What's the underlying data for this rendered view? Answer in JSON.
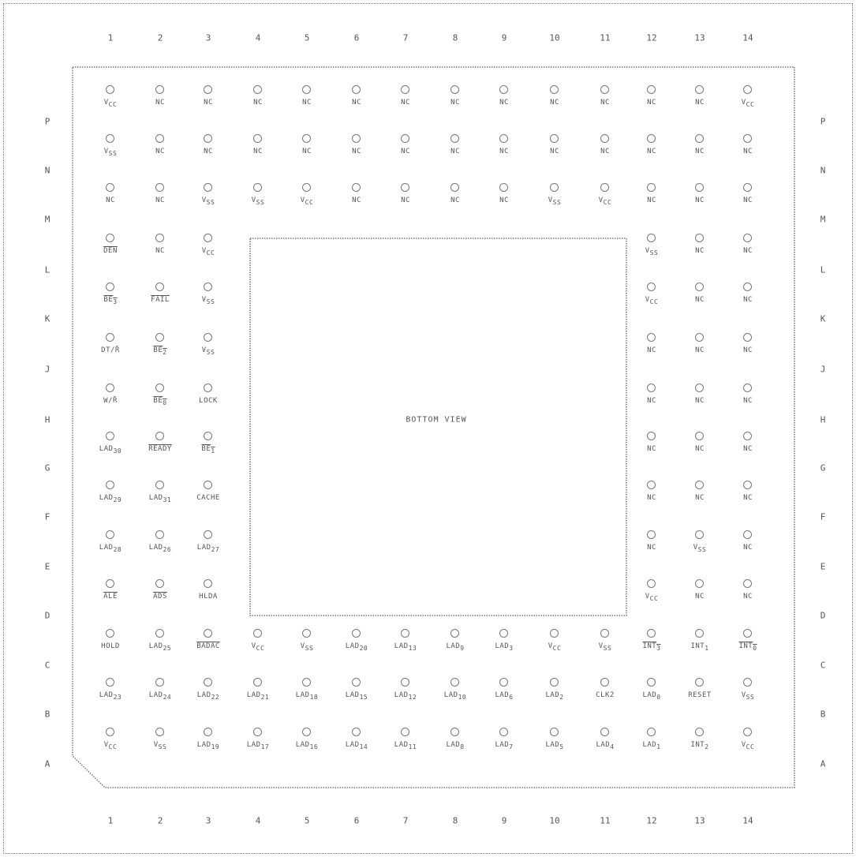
{
  "view_label": "BOTTOM VIEW",
  "columns": [
    "1",
    "2",
    "3",
    "4",
    "5",
    "6",
    "7",
    "8",
    "9",
    "10",
    "11",
    "12",
    "13",
    "14"
  ],
  "rows": [
    "P",
    "N",
    "M",
    "L",
    "K",
    "J",
    "H",
    "G",
    "F",
    "E",
    "D",
    "C",
    "B",
    "A"
  ],
  "pins": [
    {
      "row": "P",
      "col": 1,
      "label": "V",
      "sub": "CC"
    },
    {
      "row": "P",
      "col": 2,
      "label": "NC"
    },
    {
      "row": "P",
      "col": 3,
      "label": "NC"
    },
    {
      "row": "P",
      "col": 4,
      "label": "NC"
    },
    {
      "row": "P",
      "col": 5,
      "label": "NC"
    },
    {
      "row": "P",
      "col": 6,
      "label": "NC"
    },
    {
      "row": "P",
      "col": 7,
      "label": "NC"
    },
    {
      "row": "P",
      "col": 8,
      "label": "NC"
    },
    {
      "row": "P",
      "col": 9,
      "label": "NC"
    },
    {
      "row": "P",
      "col": 10,
      "label": "NC"
    },
    {
      "row": "P",
      "col": 11,
      "label": "NC"
    },
    {
      "row": "P",
      "col": 12,
      "label": "NC"
    },
    {
      "row": "P",
      "col": 13,
      "label": "NC"
    },
    {
      "row": "P",
      "col": 14,
      "label": "V",
      "sub": "CC"
    },
    {
      "row": "N",
      "col": 1,
      "label": "V",
      "sub": "SS"
    },
    {
      "row": "N",
      "col": 2,
      "label": "NC"
    },
    {
      "row": "N",
      "col": 3,
      "label": "NC"
    },
    {
      "row": "N",
      "col": 4,
      "label": "NC"
    },
    {
      "row": "N",
      "col": 5,
      "label": "NC"
    },
    {
      "row": "N",
      "col": 6,
      "label": "NC"
    },
    {
      "row": "N",
      "col": 7,
      "label": "NC"
    },
    {
      "row": "N",
      "col": 8,
      "label": "NC"
    },
    {
      "row": "N",
      "col": 9,
      "label": "NC"
    },
    {
      "row": "N",
      "col": 10,
      "label": "NC"
    },
    {
      "row": "N",
      "col": 11,
      "label": "NC"
    },
    {
      "row": "N",
      "col": 12,
      "label": "NC"
    },
    {
      "row": "N",
      "col": 13,
      "label": "NC"
    },
    {
      "row": "N",
      "col": 14,
      "label": "NC"
    },
    {
      "row": "M",
      "col": 1,
      "label": "NC"
    },
    {
      "row": "M",
      "col": 2,
      "label": "NC"
    },
    {
      "row": "M",
      "col": 3,
      "label": "V",
      "sub": "SS"
    },
    {
      "row": "M",
      "col": 4,
      "label": "V",
      "sub": "SS"
    },
    {
      "row": "M",
      "col": 5,
      "label": "V",
      "sub": "CC"
    },
    {
      "row": "M",
      "col": 6,
      "label": "NC"
    },
    {
      "row": "M",
      "col": 7,
      "label": "NC"
    },
    {
      "row": "M",
      "col": 8,
      "label": "NC"
    },
    {
      "row": "M",
      "col": 9,
      "label": "NC"
    },
    {
      "row": "M",
      "col": 10,
      "label": "V",
      "sub": "SS"
    },
    {
      "row": "M",
      "col": 11,
      "label": "V",
      "sub": "CC"
    },
    {
      "row": "M",
      "col": 12,
      "label": "NC"
    },
    {
      "row": "M",
      "col": 13,
      "label": "NC"
    },
    {
      "row": "M",
      "col": 14,
      "label": "NC"
    },
    {
      "row": "L",
      "col": 1,
      "label": "DEN",
      "overline": true
    },
    {
      "row": "L",
      "col": 2,
      "label": "NC"
    },
    {
      "row": "L",
      "col": 3,
      "label": "V",
      "sub": "CC"
    },
    {
      "row": "L",
      "col": 12,
      "label": "V",
      "sub": "SS"
    },
    {
      "row": "L",
      "col": 13,
      "label": "NC"
    },
    {
      "row": "L",
      "col": 14,
      "label": "NC"
    },
    {
      "row": "K",
      "col": 1,
      "label": "BE",
      "sub": "3",
      "overline": true
    },
    {
      "row": "K",
      "col": 2,
      "label": "FAIL",
      "overline": true
    },
    {
      "row": "K",
      "col": 3,
      "label": "V",
      "sub": "SS"
    },
    {
      "row": "K",
      "col": 12,
      "label": "V",
      "sub": "CC"
    },
    {
      "row": "K",
      "col": 13,
      "label": "NC"
    },
    {
      "row": "K",
      "col": 14,
      "label": "NC"
    },
    {
      "row": "J",
      "col": 1,
      "label": "DT/R̄"
    },
    {
      "row": "J",
      "col": 2,
      "label": "BE",
      "sub": "2",
      "overline": true
    },
    {
      "row": "J",
      "col": 3,
      "label": "V",
      "sub": "SS"
    },
    {
      "row": "J",
      "col": 12,
      "label": "NC"
    },
    {
      "row": "J",
      "col": 13,
      "label": "NC"
    },
    {
      "row": "J",
      "col": 14,
      "label": "NC"
    },
    {
      "row": "H",
      "col": 1,
      "label": "W/R̄"
    },
    {
      "row": "H",
      "col": 2,
      "label": "BE",
      "sub": "0",
      "overline": true
    },
    {
      "row": "H",
      "col": 3,
      "label": "LOCK"
    },
    {
      "row": "H",
      "col": 12,
      "label": "NC"
    },
    {
      "row": "H",
      "col": 13,
      "label": "NC"
    },
    {
      "row": "H",
      "col": 14,
      "label": "NC"
    },
    {
      "row": "G",
      "col": 1,
      "label": "LAD",
      "sub": "30"
    },
    {
      "row": "G",
      "col": 2,
      "label": "READY",
      "overline": true
    },
    {
      "row": "G",
      "col": 3,
      "label": "BE",
      "sub": "1",
      "overline": true
    },
    {
      "row": "G",
      "col": 12,
      "label": "NC"
    },
    {
      "row": "G",
      "col": 13,
      "label": "NC"
    },
    {
      "row": "G",
      "col": 14,
      "label": "NC"
    },
    {
      "row": "F",
      "col": 1,
      "label": "LAD",
      "sub": "29"
    },
    {
      "row": "F",
      "col": 2,
      "label": "LAD",
      "sub": "31"
    },
    {
      "row": "F",
      "col": 3,
      "label": "CACHE"
    },
    {
      "row": "F",
      "col": 12,
      "label": "NC"
    },
    {
      "row": "F",
      "col": 13,
      "label": "NC"
    },
    {
      "row": "F",
      "col": 14,
      "label": "NC"
    },
    {
      "row": "E",
      "col": 1,
      "label": "LAD",
      "sub": "28"
    },
    {
      "row": "E",
      "col": 2,
      "label": "LAD",
      "sub": "26"
    },
    {
      "row": "E",
      "col": 3,
      "label": "LAD",
      "sub": "27"
    },
    {
      "row": "E",
      "col": 12,
      "label": "NC"
    },
    {
      "row": "E",
      "col": 13,
      "label": "V",
      "sub": "SS"
    },
    {
      "row": "E",
      "col": 14,
      "label": "NC"
    },
    {
      "row": "D",
      "col": 1,
      "label": "ALE",
      "overline": true
    },
    {
      "row": "D",
      "col": 2,
      "label": "ADS",
      "overline": true
    },
    {
      "row": "D",
      "col": 3,
      "label": "HLDA"
    },
    {
      "row": "D",
      "col": 12,
      "label": "V",
      "sub": "CC"
    },
    {
      "row": "D",
      "col": 13,
      "label": "NC"
    },
    {
      "row": "D",
      "col": 14,
      "label": "NC"
    },
    {
      "row": "C",
      "col": 1,
      "label": "HOLD"
    },
    {
      "row": "C",
      "col": 2,
      "label": "LAD",
      "sub": "25"
    },
    {
      "row": "C",
      "col": 3,
      "label": "BADAC",
      "overline": true
    },
    {
      "row": "C",
      "col": 4,
      "label": "V",
      "sub": "CC"
    },
    {
      "row": "C",
      "col": 5,
      "label": "V",
      "sub": "SS"
    },
    {
      "row": "C",
      "col": 6,
      "label": "LAD",
      "sub": "20"
    },
    {
      "row": "C",
      "col": 7,
      "label": "LAD",
      "sub": "13"
    },
    {
      "row": "C",
      "col": 8,
      "label": "LAD",
      "sub": "9"
    },
    {
      "row": "C",
      "col": 9,
      "label": "LAD",
      "sub": "3"
    },
    {
      "row": "C",
      "col": 10,
      "label": "V",
      "sub": "CC"
    },
    {
      "row": "C",
      "col": 11,
      "label": "V",
      "sub": "SS"
    },
    {
      "row": "C",
      "col": 12,
      "label": "INT",
      "sub": "3",
      "overline": true
    },
    {
      "row": "C",
      "col": 13,
      "label": "INT",
      "sub": "1"
    },
    {
      "row": "C",
      "col": 14,
      "label": "INT",
      "sub": "0",
      "overline": true
    },
    {
      "row": "B",
      "col": 1,
      "label": "LAD",
      "sub": "23"
    },
    {
      "row": "B",
      "col": 2,
      "label": "LAD",
      "sub": "24"
    },
    {
      "row": "B",
      "col": 3,
      "label": "LAD",
      "sub": "22"
    },
    {
      "row": "B",
      "col": 4,
      "label": "LAD",
      "sub": "21"
    },
    {
      "row": "B",
      "col": 5,
      "label": "LAD",
      "sub": "18"
    },
    {
      "row": "B",
      "col": 6,
      "label": "LAD",
      "sub": "15"
    },
    {
      "row": "B",
      "col": 7,
      "label": "LAD",
      "sub": "12"
    },
    {
      "row": "B",
      "col": 8,
      "label": "LAD",
      "sub": "10"
    },
    {
      "row": "B",
      "col": 9,
      "label": "LAD",
      "sub": "6"
    },
    {
      "row": "B",
      "col": 10,
      "label": "LAD",
      "sub": "2"
    },
    {
      "row": "B",
      "col": 11,
      "label": "CLK2"
    },
    {
      "row": "B",
      "col": 12,
      "label": "LAD",
      "sub": "0"
    },
    {
      "row": "B",
      "col": 13,
      "label": "RESET"
    },
    {
      "row": "B",
      "col": 14,
      "label": "V",
      "sub": "SS"
    },
    {
      "row": "A",
      "col": 1,
      "label": "V",
      "sub": "CC"
    },
    {
      "row": "A",
      "col": 2,
      "label": "V",
      "sub": "SS"
    },
    {
      "row": "A",
      "col": 3,
      "label": "LAD",
      "sub": "19"
    },
    {
      "row": "A",
      "col": 4,
      "label": "LAD",
      "sub": "17"
    },
    {
      "row": "A",
      "col": 5,
      "label": "LAD",
      "sub": "16"
    },
    {
      "row": "A",
      "col": 6,
      "label": "LAD",
      "sub": "14"
    },
    {
      "row": "A",
      "col": 7,
      "label": "LAD",
      "sub": "11"
    },
    {
      "row": "A",
      "col": 8,
      "label": "LAD",
      "sub": "8"
    },
    {
      "row": "A",
      "col": 9,
      "label": "LAD",
      "sub": "7"
    },
    {
      "row": "A",
      "col": 10,
      "label": "LAD",
      "sub": "5"
    },
    {
      "row": "A",
      "col": 11,
      "label": "LAD",
      "sub": "4"
    },
    {
      "row": "A",
      "col": 12,
      "label": "LAD",
      "sub": "1"
    },
    {
      "row": "A",
      "col": 13,
      "label": "INT",
      "sub": "2"
    },
    {
      "row": "A",
      "col": 14,
      "label": "V",
      "sub": "CC"
    }
  ]
}
